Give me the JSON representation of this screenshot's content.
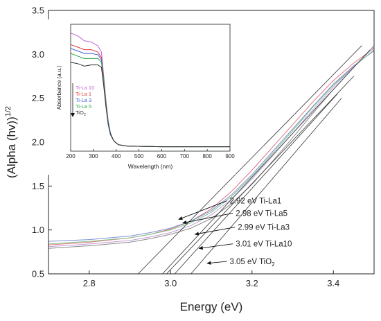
{
  "chart_data": [
    {
      "type": "line",
      "xlabel": "Energy (eV)",
      "ylabel_main": "(Alpha (hv))",
      "ylabel_sup": "1/2",
      "xlim": [
        2.7,
        3.5
      ],
      "ylim": [
        0.5,
        3.5
      ],
      "xticks": [
        "2.8",
        "3.0",
        "3.2",
        "3.4"
      ],
      "xtick_values": [
        2.8,
        3.0,
        3.2,
        3.4
      ],
      "yticks": [
        "0.5",
        "1.0",
        "1.5",
        "2.0",
        "2.5",
        "3.0",
        "3.5"
      ],
      "ytick_values": [
        0.5,
        1.0,
        1.5,
        2.0,
        2.5,
        3.0,
        3.5
      ],
      "series": [
        {
          "color": "#e0767a",
          "x": [
            2.7,
            2.8,
            2.9,
            2.95,
            3.0,
            3.05,
            3.1,
            3.15,
            3.2,
            3.25,
            3.3,
            3.35,
            3.4,
            3.45,
            3.5
          ],
          "y": [
            0.83,
            0.86,
            0.91,
            0.95,
            1.01,
            1.1,
            1.24,
            1.44,
            1.68,
            1.94,
            2.2,
            2.46,
            2.7,
            2.9,
            3.07
          ]
        },
        {
          "color": "#7a8fd6",
          "x": [
            2.7,
            2.8,
            2.9,
            2.95,
            3.0,
            3.05,
            3.1,
            3.15,
            3.2,
            3.25,
            3.3,
            3.35,
            3.4,
            3.45,
            3.5
          ],
          "y": [
            0.87,
            0.89,
            0.93,
            0.97,
            1.02,
            1.1,
            1.22,
            1.4,
            1.63,
            1.89,
            2.15,
            2.41,
            2.66,
            2.87,
            3.04
          ]
        },
        {
          "color": "#7fc48a",
          "x": [
            2.7,
            2.8,
            2.9,
            2.95,
            3.0,
            3.05,
            3.1,
            3.15,
            3.2,
            3.25,
            3.3,
            3.35,
            3.4,
            3.45,
            3.5
          ],
          "y": [
            0.84,
            0.87,
            0.91,
            0.95,
            1.0,
            1.08,
            1.2,
            1.38,
            1.61,
            1.87,
            2.13,
            2.4,
            2.65,
            2.86,
            3.05
          ]
        },
        {
          "color": "#c39ad6",
          "x": [
            2.7,
            2.8,
            2.9,
            2.95,
            3.0,
            3.05,
            3.1,
            3.15,
            3.2,
            3.25,
            3.3,
            3.35,
            3.4,
            3.45,
            3.5
          ],
          "y": [
            0.81,
            0.84,
            0.88,
            0.92,
            0.97,
            1.05,
            1.17,
            1.35,
            1.58,
            1.84,
            2.1,
            2.37,
            2.63,
            2.86,
            3.08
          ]
        },
        {
          "color": "#8a8a8a",
          "x": [
            2.7,
            2.8,
            2.9,
            2.95,
            3.0,
            3.05,
            3.1,
            3.15,
            3.2,
            3.25,
            3.3,
            3.35,
            3.4,
            3.45,
            3.5
          ],
          "y": [
            0.79,
            0.82,
            0.86,
            0.9,
            0.95,
            1.02,
            1.13,
            1.3,
            1.52,
            1.78,
            2.05,
            2.33,
            2.6,
            2.85,
            3.1
          ]
        }
      ],
      "tangents": [
        {
          "x": [
            2.92,
            3.47
          ],
          "y": [
            0.5,
            3.1
          ]
        },
        {
          "x": [
            2.98,
            3.49
          ],
          "y": [
            0.5,
            3.05
          ]
        },
        {
          "x": [
            2.99,
            3.45
          ],
          "y": [
            0.5,
            2.75
          ]
        },
        {
          "x": [
            3.01,
            3.41
          ],
          "y": [
            0.5,
            2.55
          ]
        },
        {
          "x": [
            3.05,
            3.42
          ],
          "y": [
            0.5,
            2.5
          ]
        }
      ],
      "annotations": [
        {
          "text": "2.92 eV Ti-La1",
          "text_x": 3.145,
          "text_y": 1.3,
          "arrow_x": 3.02,
          "arrow_y": 1.12
        },
        {
          "text": "2.98 eV Ti-La5",
          "text_x": 3.16,
          "text_y": 1.16,
          "arrow_x": 3.03,
          "arrow_y": 1.08
        },
        {
          "text": "2.99 eV Ti-La3",
          "text_x": 3.165,
          "text_y": 1.0,
          "arrow_x": 3.06,
          "arrow_y": 0.95
        },
        {
          "text": "3.01 eV Ti-La10",
          "text_x": 3.16,
          "text_y": 0.81,
          "arrow_x": 3.07,
          "arrow_y": 0.79
        },
        {
          "text": "3.05 eV TiO",
          "sub": "2",
          "text_x": 3.145,
          "text_y": 0.61,
          "arrow_x": 3.09,
          "arrow_y": 0.62
        }
      ]
    },
    {
      "type": "line",
      "xlabel": "Wavelength (nm)",
      "ylabel": "Absorbance (a.u.)",
      "xlim": [
        200,
        900
      ],
      "ylim": [
        0,
        1
      ],
      "xticks": [
        "200",
        "300",
        "400",
        "500",
        "600",
        "700",
        "800",
        "900"
      ],
      "xtick_values": [
        200,
        300,
        400,
        500,
        600,
        700,
        800,
        900
      ],
      "series": [
        {
          "name": "Ti-La 10",
          "color": "#c061d9",
          "x": [
            200,
            230,
            260,
            290,
            320,
            335,
            345,
            355,
            365,
            375,
            390,
            410,
            450,
            600,
            900
          ],
          "y": [
            0.93,
            0.91,
            0.87,
            0.86,
            0.83,
            0.78,
            0.6,
            0.4,
            0.24,
            0.14,
            0.08,
            0.05,
            0.04,
            0.035,
            0.035
          ]
        },
        {
          "name": "Ti-La 1",
          "color": "#e03a3a",
          "x": [
            200,
            230,
            260,
            290,
            320,
            335,
            345,
            355,
            365,
            375,
            390,
            410,
            450,
            600,
            900
          ],
          "y": [
            0.84,
            0.82,
            0.8,
            0.8,
            0.78,
            0.74,
            0.58,
            0.39,
            0.23,
            0.14,
            0.08,
            0.05,
            0.04,
            0.035,
            0.035
          ]
        },
        {
          "name": "Ti-La 3",
          "color": "#3a5fd6",
          "x": [
            200,
            230,
            260,
            290,
            320,
            335,
            345,
            355,
            365,
            375,
            390,
            410,
            450,
            600,
            900
          ],
          "y": [
            0.81,
            0.79,
            0.77,
            0.77,
            0.76,
            0.72,
            0.56,
            0.38,
            0.23,
            0.14,
            0.08,
            0.05,
            0.04,
            0.035,
            0.035
          ]
        },
        {
          "name": "Ti-La 5",
          "color": "#2ea84a",
          "x": [
            200,
            230,
            260,
            290,
            320,
            335,
            345,
            355,
            365,
            375,
            390,
            410,
            450,
            600,
            900
          ],
          "y": [
            0.77,
            0.75,
            0.73,
            0.73,
            0.73,
            0.7,
            0.55,
            0.37,
            0.22,
            0.13,
            0.08,
            0.05,
            0.04,
            0.035,
            0.035
          ]
        },
        {
          "name": "TiO",
          "name_sub": "2",
          "color": "#333333",
          "x": [
            200,
            230,
            260,
            290,
            320,
            335,
            345,
            355,
            365,
            375,
            390,
            410,
            450,
            600,
            900
          ],
          "y": [
            0.7,
            0.69,
            0.67,
            0.68,
            0.68,
            0.66,
            0.52,
            0.35,
            0.21,
            0.13,
            0.08,
            0.05,
            0.04,
            0.035,
            0.035
          ]
        }
      ]
    }
  ]
}
